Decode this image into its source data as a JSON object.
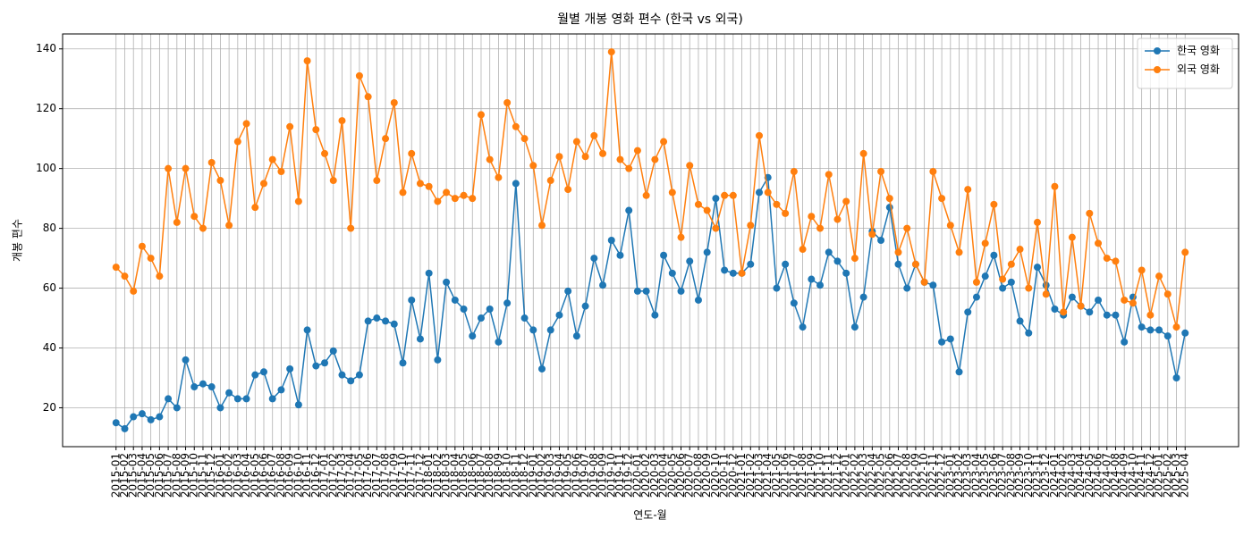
{
  "chart_data": {
    "type": "line",
    "title": "월별 개봉 영화 편수 (한국 vs 외국)",
    "x_label": "연도-월",
    "y_label": "개봉 편수",
    "categories": [
      "2015-01",
      "2015-02",
      "2015-03",
      "2015-04",
      "2015-05",
      "2015-06",
      "2015-07",
      "2015-08",
      "2015-09",
      "2015-10",
      "2015-11",
      "2015-12",
      "2016-01",
      "2016-02",
      "2016-03",
      "2016-04",
      "2016-05",
      "2016-06",
      "2016-07",
      "2016-08",
      "2016-09",
      "2016-10",
      "2016-11",
      "2016-12",
      "2017-01",
      "2017-02",
      "2017-03",
      "2017-04",
      "2017-05",
      "2017-06",
      "2017-07",
      "2017-08",
      "2017-09",
      "2017-10",
      "2017-11",
      "2017-12",
      "2018-01",
      "2018-02",
      "2018-03",
      "2018-04",
      "2018-05",
      "2018-06",
      "2018-07",
      "2018-08",
      "2018-09",
      "2018-10",
      "2018-11",
      "2018-12",
      "2019-01",
      "2019-02",
      "2019-03",
      "2019-04",
      "2019-05",
      "2019-06",
      "2019-07",
      "2019-08",
      "2019-09",
      "2019-10",
      "2019-11",
      "2019-12",
      "2020-01",
      "2020-02",
      "2020-03",
      "2020-04",
      "2020-05",
      "2020-06",
      "2020-07",
      "2020-08",
      "2020-09",
      "2020-10",
      "2020-11",
      "2020-12",
      "2021-01",
      "2021-02",
      "2021-03",
      "2021-04",
      "2021-05",
      "2021-06",
      "2021-07",
      "2021-08",
      "2021-09",
      "2021-10",
      "2021-11",
      "2021-12",
      "2022-01",
      "2022-02",
      "2022-03",
      "2022-04",
      "2022-05",
      "2022-06",
      "2022-07",
      "2022-08",
      "2022-09",
      "2022-10",
      "2022-11",
      "2022-12",
      "2023-01",
      "2023-02",
      "2023-03",
      "2023-04",
      "2023-05",
      "2023-06",
      "2023-07",
      "2023-08",
      "2023-09",
      "2023-10",
      "2023-11",
      "2023-12",
      "2024-01",
      "2024-02",
      "2024-03",
      "2024-04",
      "2024-05",
      "2024-06",
      "2024-07",
      "2024-08",
      "2024-09",
      "2024-10",
      "2024-11",
      "2024-12",
      "2025-01",
      "2025-02",
      "2025-03",
      "2025-04"
    ],
    "series": [
      {
        "name": "한국 영화",
        "color": "#1f77b4",
        "values": [
          15,
          13,
          17,
          18,
          16,
          17,
          23,
          20,
          36,
          27,
          28,
          27,
          20,
          25,
          23,
          23,
          31,
          32,
          23,
          26,
          33,
          21,
          46,
          34,
          35,
          39,
          31,
          29,
          31,
          49,
          50,
          49,
          48,
          35,
          56,
          43,
          65,
          36,
          62,
          56,
          53,
          44,
          50,
          53,
          42,
          55,
          95,
          50,
          46,
          33,
          46,
          51,
          59,
          44,
          54,
          70,
          61,
          76,
          71,
          86,
          59,
          59,
          51,
          71,
          65,
          59,
          69,
          56,
          72,
          90,
          66,
          65,
          65,
          68,
          92,
          97,
          60,
          68,
          55,
          47,
          63,
          61,
          72,
          69,
          65,
          47,
          57,
          79,
          76,
          87,
          68,
          60,
          68,
          62,
          61,
          42,
          43,
          32,
          52,
          57,
          64,
          71,
          60,
          62,
          49,
          45,
          67,
          61,
          53,
          51,
          57,
          54,
          52,
          56,
          51,
          51,
          42,
          57,
          47,
          46,
          46,
          44,
          30,
          45
        ]
      },
      {
        "name": "외국 영화",
        "color": "#ff7f0e",
        "values": [
          67,
          64,
          59,
          74,
          70,
          64,
          100,
          82,
          100,
          84,
          80,
          102,
          96,
          81,
          109,
          115,
          87,
          95,
          103,
          99,
          114,
          89,
          136,
          113,
          105,
          96,
          116,
          80,
          131,
          124,
          96,
          110,
          122,
          92,
          105,
          95,
          94,
          89,
          92,
          90,
          91,
          90,
          118,
          103,
          97,
          122,
          114,
          110,
          101,
          81,
          96,
          104,
          93,
          109,
          104,
          111,
          105,
          139,
          103,
          100,
          106,
          91,
          103,
          109,
          92,
          77,
          101,
          88,
          86,
          80,
          91,
          91,
          65,
          81,
          111,
          92,
          88,
          85,
          99,
          73,
          84,
          80,
          98,
          83,
          89,
          70,
          105,
          78,
          99,
          90,
          72,
          80,
          68,
          62,
          99,
          90,
          81,
          72,
          93,
          62,
          75,
          88,
          63,
          68,
          73,
          60,
          82,
          58,
          94,
          52,
          77,
          54,
          85,
          75,
          70,
          69,
          56,
          55,
          66,
          51,
          64,
          58,
          47,
          72
        ]
      }
    ],
    "ylim": [
      7,
      145
    ],
    "yticks": [
      20,
      40,
      60,
      80,
      100,
      120,
      140
    ],
    "grid": true,
    "legend": "upper right"
  }
}
